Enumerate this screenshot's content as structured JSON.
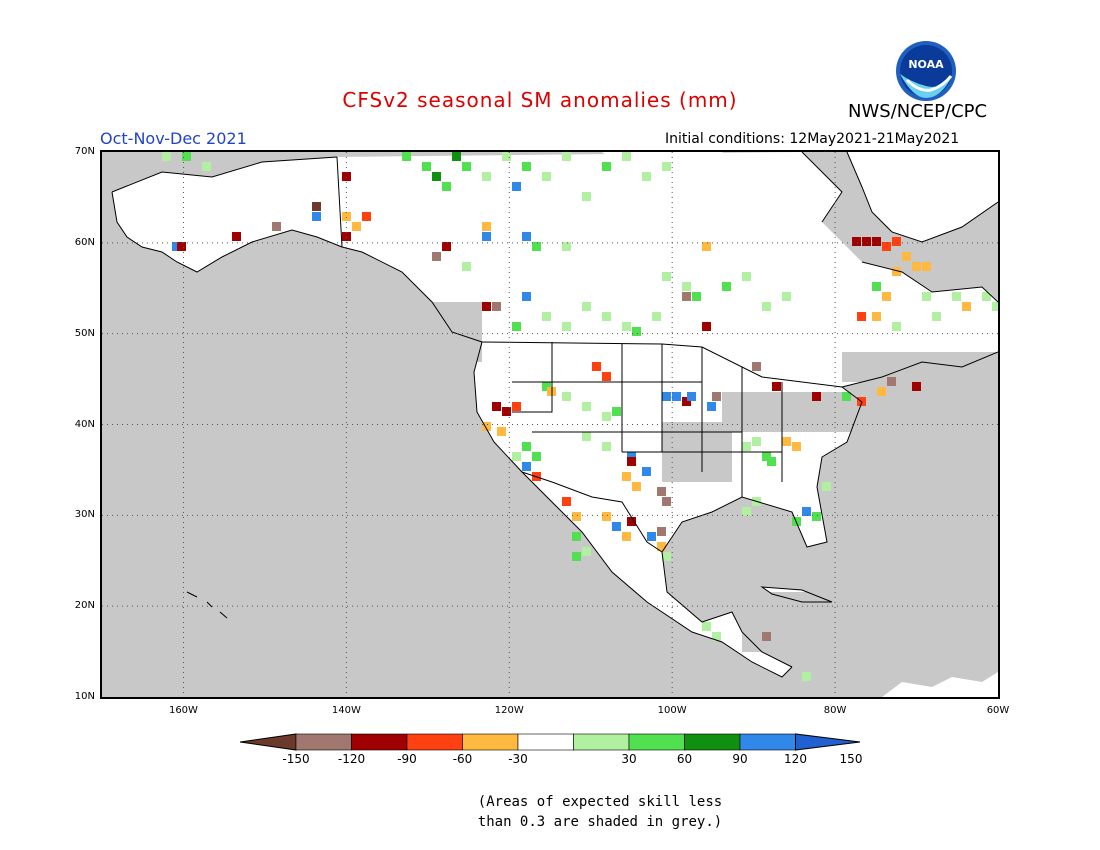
{
  "header": {
    "title": "CFSv2 seasonal SM anomalies (mm)",
    "agency": "NWS/NCEP/CPC",
    "logo_text": "NOAA",
    "period": "Oct-Nov-Dec 2021",
    "initial_conditions": "Initial conditions: 12May2021-21May2021"
  },
  "map": {
    "lat_labels": [
      "70N",
      "60N",
      "50N",
      "40N",
      "30N",
      "20N",
      "10N"
    ],
    "lon_labels": [
      "160W",
      "140W",
      "120W",
      "100W",
      "80W",
      "60W"
    ],
    "extent": {
      "lon_min": -170,
      "lon_max": -60,
      "lat_min": 10,
      "lat_max": 70
    },
    "grid": "dotted",
    "colors": {
      "ocean_grey": "#c8c8c8",
      "land": "#ffffff",
      "border": "#000000"
    }
  },
  "colorbar": {
    "ticks": [
      "-150",
      "-120",
      "-90",
      "-60",
      "-30",
      "30",
      "60",
      "90",
      "120",
      "150"
    ],
    "colors": [
      "#6b3a2a",
      "#a07870",
      "#a00000",
      "#ff4010",
      "#ffb840",
      "#ffffff",
      "#b0f0a0",
      "#50e050",
      "#109010",
      "#3088e8",
      "#2060d0"
    ]
  },
  "note": {
    "line1": "(Areas of expected skill less",
    "line2": "than 0.3 are shaded in grey.)"
  }
}
